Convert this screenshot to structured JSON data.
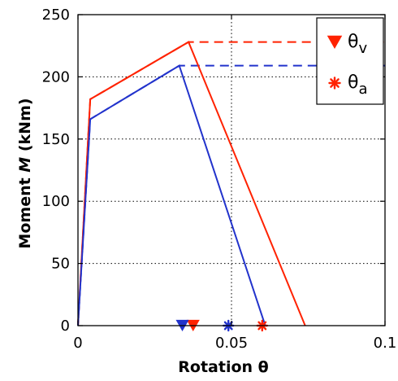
{
  "chart_data": {
    "type": "line",
    "title": "",
    "xlabel": "Rotation θ",
    "ylabel_prefix": "Moment ",
    "ylabel_italic": "M",
    "ylabel_suffix": " (kNm)",
    "xlim": [
      0,
      0.1
    ],
    "ylim": [
      0,
      250
    ],
    "x_ticks": [
      0,
      0.05,
      0.1
    ],
    "x_tick_labels": [
      "0",
      "0.05",
      "0.1"
    ],
    "y_ticks": [
      0,
      50,
      100,
      150,
      200,
      250
    ],
    "y_tick_labels": [
      "0",
      "50",
      "100",
      "150",
      "200",
      "250"
    ],
    "grid": "dotted",
    "legend_position": "top-right",
    "colors": {
      "red": "#ff2200",
      "blue": "#2233cc"
    },
    "series": [
      {
        "color_key": "red",
        "solid": [
          [
            0,
            0
          ],
          [
            0.004,
            182
          ],
          [
            0.036,
            228
          ],
          [
            0.074,
            0
          ]
        ],
        "dashed": [
          [
            0,
            0
          ],
          [
            0.004,
            182
          ],
          [
            0.036,
            228
          ],
          [
            0.1,
            228
          ]
        ],
        "theta_v": 0.0375,
        "theta_a": 0.06
      },
      {
        "color_key": "blue",
        "solid": [
          [
            0,
            0
          ],
          [
            0.004,
            166
          ],
          [
            0.033,
            209
          ],
          [
            0.061,
            0
          ]
        ],
        "dashed": [
          [
            0,
            0
          ],
          [
            0.004,
            166
          ],
          [
            0.033,
            209
          ],
          [
            0.1,
            209
          ]
        ],
        "theta_v": 0.034,
        "theta_a": 0.049
      }
    ],
    "legend": [
      {
        "symbol": "triangle-down",
        "label_main": "θ",
        "label_sub": "v"
      },
      {
        "symbol": "asterisk",
        "label_main": "θ",
        "label_sub": "a"
      }
    ]
  }
}
